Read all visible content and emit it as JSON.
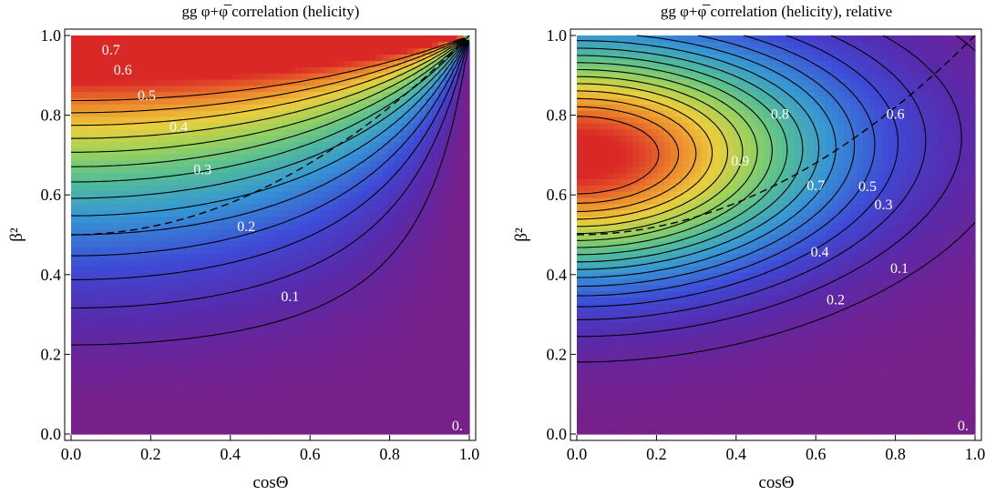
{
  "chart_data": [
    {
      "type": "heatmap",
      "title": "gg φ+φ̅ correlation (helicity)",
      "xlabel": "cosΘ",
      "ylabel": "β²",
      "xlim": [
        0.0,
        1.0
      ],
      "ylim": [
        0.0,
        1.0
      ],
      "xticks": [
        "0.0",
        "0.2",
        "0.4",
        "0.6",
        "0.8",
        "1.0"
      ],
      "yticks": [
        "0.0",
        "0.2",
        "0.4",
        "0.6",
        "0.8",
        "1.0"
      ],
      "contour_levels": [
        0.0,
        0.05,
        0.1,
        0.15,
        0.2,
        0.25,
        0.3,
        0.35,
        0.4,
        0.45,
        0.5,
        0.55,
        0.6,
        0.65,
        0.7
      ],
      "contour_labels": [
        {
          "text": "0.7",
          "x": 0.1,
          "y": 0.96
        },
        {
          "text": "0.6",
          "x": 0.13,
          "y": 0.91
        },
        {
          "text": "0.5",
          "x": 0.19,
          "y": 0.846
        },
        {
          "text": "0.4",
          "x": 0.27,
          "y": 0.768
        },
        {
          "text": "0.3",
          "x": 0.33,
          "y": 0.66
        },
        {
          "text": "0.2",
          "x": 0.44,
          "y": 0.518
        },
        {
          "text": "0.1",
          "x": 0.55,
          "y": 0.342
        },
        {
          "text": "0.",
          "x": 0.97,
          "y": 0.018
        }
      ],
      "dashed_curve": "β² = 0.5 + 0.5·cosΘ²"
    },
    {
      "type": "heatmap",
      "title": "gg φ+φ̅ correlation (helicity), relative",
      "xlabel": "cosΘ",
      "ylabel": "β²",
      "xlim": [
        0.0,
        1.0
      ],
      "ylim": [
        0.0,
        1.0
      ],
      "xticks": [
        "0.0",
        "0.2",
        "0.4",
        "0.6",
        "0.8",
        "1.0"
      ],
      "yticks": [
        "0.0",
        "0.2",
        "0.4",
        "0.6",
        "0.8",
        "1.0"
      ],
      "contour_levels": [
        0.0,
        0.05,
        0.1,
        0.15,
        0.2,
        0.25,
        0.3,
        0.35,
        0.4,
        0.45,
        0.5,
        0.55,
        0.6,
        0.65,
        0.7,
        0.75,
        0.8,
        0.85,
        0.9
      ],
      "contour_labels": [
        {
          "text": "0.8",
          "x": 0.51,
          "y": 0.8
        },
        {
          "text": "0.6",
          "x": 0.8,
          "y": 0.8
        },
        {
          "text": "0.9",
          "x": 0.41,
          "y": 0.682
        },
        {
          "text": "0.7",
          "x": 0.6,
          "y": 0.62
        },
        {
          "text": "0.5",
          "x": 0.73,
          "y": 0.618
        },
        {
          "text": "0.3",
          "x": 0.77,
          "y": 0.572
        },
        {
          "text": "0.4",
          "x": 0.61,
          "y": 0.454
        },
        {
          "text": "0.1",
          "x": 0.81,
          "y": 0.412
        },
        {
          "text": "0.2",
          "x": 0.65,
          "y": 0.334
        },
        {
          "text": "0.",
          "x": 0.97,
          "y": 0.018
        }
      ],
      "dashed_curve": "β² = 0.5 + 0.5·cosΘ²"
    }
  ]
}
